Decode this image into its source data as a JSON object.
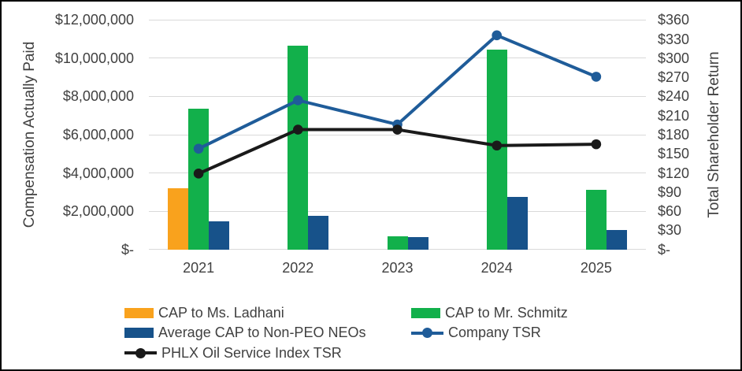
{
  "chart_data": {
    "type": "combo",
    "title": "",
    "categories": [
      "2021",
      "2022",
      "2023",
      "2024",
      "2025"
    ],
    "series": [
      {
        "name": "CAP to Ms. Ladhani",
        "type": "bar",
        "axis": "left",
        "color": "#F9A21D",
        "values": [
          3200000,
          null,
          null,
          null,
          null
        ]
      },
      {
        "name": "CAP to Mr. Schmitz",
        "type": "bar",
        "axis": "left",
        "color": "#12B04B",
        "values": [
          7350000,
          10650000,
          700000,
          10450000,
          3100000
        ]
      },
      {
        "name": "Average CAP to Non-PEO NEOs",
        "type": "bar",
        "axis": "left",
        "color": "#17528A",
        "values": [
          1450000,
          1750000,
          625000,
          2750000,
          1000000
        ]
      },
      {
        "name": "Company TSR",
        "type": "line",
        "axis": "right",
        "color": "#1F5C99",
        "values": [
          158,
          234,
          196,
          336,
          271
        ]
      },
      {
        "name": "PHLX Oil Service Index TSR",
        "type": "line",
        "axis": "right",
        "color": "#1A1A1A",
        "values": [
          119,
          188,
          188,
          163,
          165
        ]
      }
    ],
    "left_axis": {
      "label": "Compensation Actually Paid",
      "min": 0,
      "max": 12000000,
      "ticks": [
        "$12,000,000",
        "$10,000,000",
        "$8,000,000",
        "$6,000,000",
        "$4,000,000",
        "$2,000,000",
        "$-"
      ],
      "tick_values": [
        12000000,
        10000000,
        8000000,
        6000000,
        4000000,
        2000000,
        0
      ]
    },
    "right_axis": {
      "label": "Total Shareholder Return",
      "min": 0,
      "max": 360,
      "ticks": [
        "$360",
        "$330",
        "$300",
        "$270",
        "$240",
        "$210",
        "$180",
        "$150",
        "$120",
        "$90",
        "$60",
        "$30",
        "$-"
      ],
      "tick_values": [
        360,
        330,
        300,
        270,
        240,
        210,
        180,
        150,
        120,
        90,
        60,
        30,
        0
      ]
    },
    "legend": {
      "position": "bottom",
      "rows": [
        [
          "CAP to Ms. Ladhani",
          "CAP to Mr. Schmitz"
        ],
        [
          "Average CAP to Non-PEO NEOs",
          "Company TSR"
        ],
        [
          "PHLX Oil Service Index TSR"
        ]
      ]
    },
    "grid": "horizontal",
    "colors": {
      "gridline": "#D9D9D9",
      "text": "#404040",
      "frame_border": "#000000",
      "background": "#FFFFFF"
    }
  }
}
